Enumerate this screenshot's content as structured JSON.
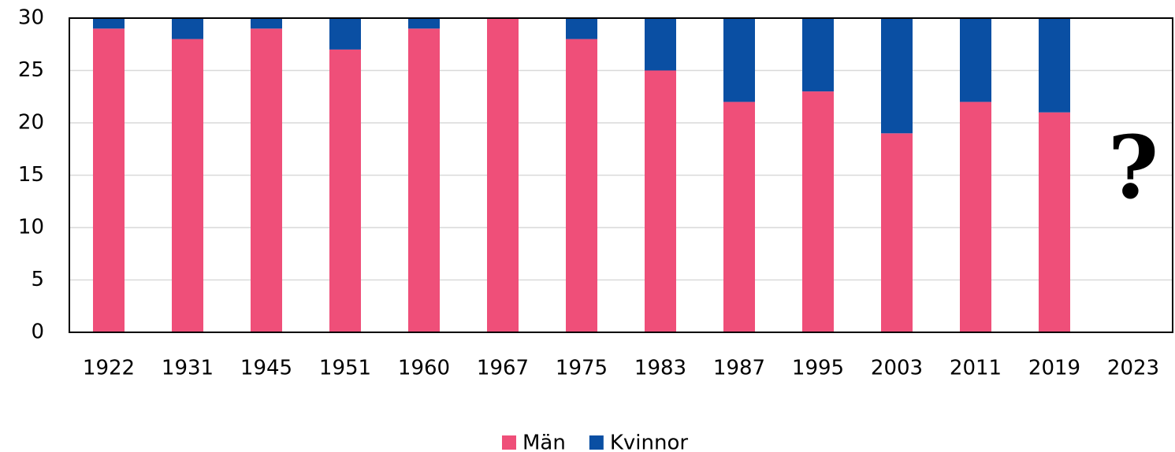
{
  "chart_data": {
    "type": "stacked_bar",
    "categories": [
      "1922",
      "1931",
      "1945",
      "1951",
      "1960",
      "1967",
      "1975",
      "1983",
      "1987",
      "1995",
      "2003",
      "2011",
      "2019",
      "2023"
    ],
    "series": [
      {
        "name": "Män",
        "color": "#ef4f79",
        "values": [
          29,
          28,
          29,
          27,
          29,
          30,
          28,
          25,
          22,
          23,
          19,
          22,
          21,
          null
        ]
      },
      {
        "name": "Kvinnor",
        "color": "#0a4fa3",
        "values": [
          1,
          2,
          1,
          3,
          1,
          0,
          2,
          5,
          8,
          7,
          11,
          8,
          9,
          null
        ]
      }
    ],
    "ylim": [
      0,
      30
    ],
    "yticks": [
      0,
      5,
      10,
      15,
      20,
      25,
      30
    ],
    "grid": true,
    "annotation": "?",
    "legend": "bottom"
  }
}
